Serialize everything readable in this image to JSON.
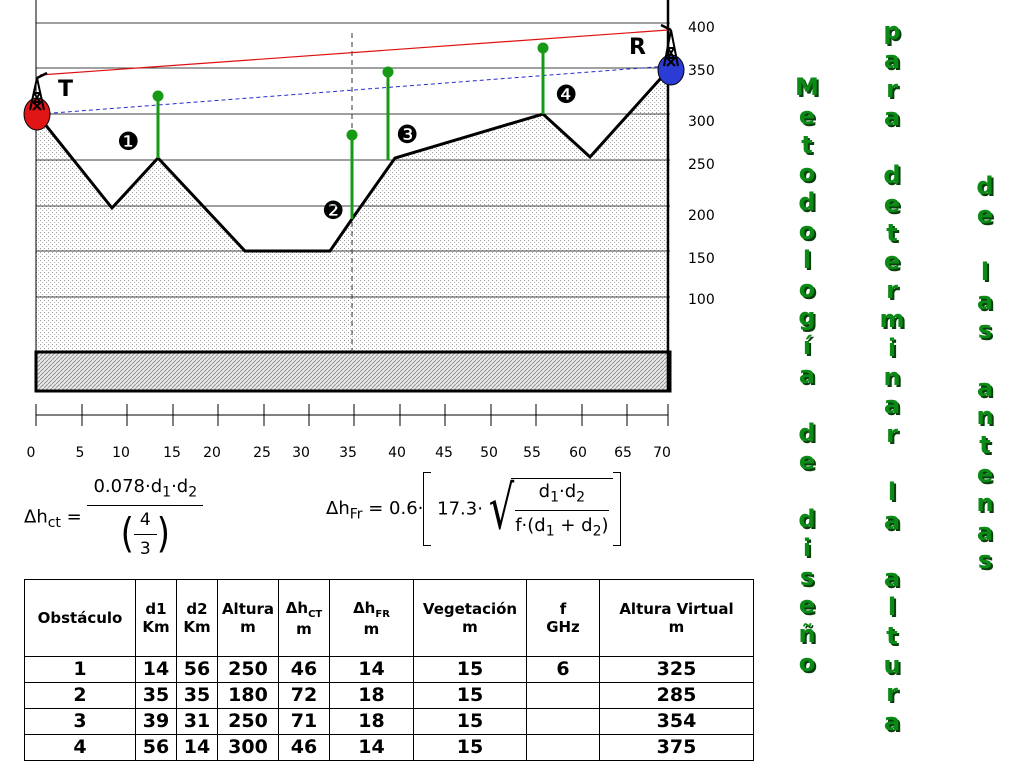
{
  "y_axis_labels": [
    "400",
    "350",
    "300",
    "250",
    "200",
    "150",
    "100"
  ],
  "x_axis_labels": [
    "0",
    "5",
    "10",
    "15",
    "20",
    "25",
    "30",
    "35",
    "40",
    "45",
    "50",
    "55",
    "60",
    "65",
    "70"
  ],
  "station_labels": {
    "transmitter": "T",
    "receiver": "R"
  },
  "obstacle_markers": [
    "❶",
    "❷",
    "❸",
    "❹"
  ],
  "formulas": {
    "ct": {
      "lhs": "Δh",
      "lhs_sub": "ct",
      "eq": " = ",
      "numerator": "0.078·d",
      "num_sub1": "1",
      "num_mid": "·d",
      "num_sub2": "2",
      "den_four": "4",
      "den_three": "3"
    },
    "fr": {
      "lhs": "Δh",
      "lhs_sub": "Fr",
      "eq": " = 0.6·",
      "coef": "17.3·",
      "root_num": "d",
      "root_num_sub1": "1",
      "root_num_mid": "·d",
      "root_num_sub2": "2",
      "root_den_a": "f·(d",
      "root_den_sub1": "1",
      "root_den_plus": " + d",
      "root_den_sub2": "2",
      "root_den_close": ")"
    }
  },
  "table": {
    "headers": [
      {
        "line1": "Obstáculo",
        "line2": ""
      },
      {
        "line1": "d1",
        "line2": "Km"
      },
      {
        "line1": "d2",
        "line2": "Km"
      },
      {
        "line1": "Altura",
        "line2": "m"
      },
      {
        "line1": "Δh",
        "sub": "CT",
        "line2": "m"
      },
      {
        "line1": "Δh",
        "sub": "FR",
        "line2": "m"
      },
      {
        "line1": "Vegetación",
        "line2": "m"
      },
      {
        "line1": "f",
        "line2": "GHz"
      },
      {
        "line1": "Altura Virtual",
        "line2": "m"
      }
    ],
    "rows": [
      [
        "1",
        "14",
        "56",
        "250",
        "46",
        "14",
        "15",
        "6",
        "325"
      ],
      [
        "2",
        "35",
        "35",
        "180",
        "72",
        "18",
        "15",
        "",
        "285"
      ],
      [
        "3",
        "39",
        "31",
        "250",
        "71",
        "18",
        "15",
        "",
        "354"
      ],
      [
        "4",
        "56",
        "14",
        "300",
        "46",
        "14",
        "15",
        "",
        "375"
      ]
    ]
  },
  "vertical_title": {
    "col1": "Metodología de diseño",
    "col2": "para determinar la altura",
    "col3": "de las antenas"
  },
  "colors": {
    "terrain": "#000000",
    "obstacle_poles": "#169a16",
    "los_red": "#e01010",
    "los_blue_dashed": "#2a2ad0",
    "transmitter": "#e01515",
    "receiver": "#2a3bd6",
    "title_green": "#0b8a16"
  }
}
